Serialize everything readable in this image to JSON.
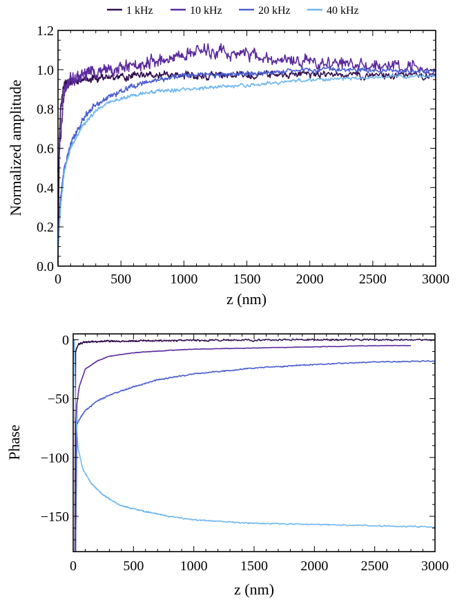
{
  "chart_data": [
    {
      "type": "line",
      "legend": [
        "1 kHz",
        "10 kHz",
        "20 kHz",
        "40 kHz"
      ],
      "legend_position": "top",
      "xlabel": "z (nm)",
      "ylabel": "Normalized amplitude",
      "xlim": [
        0,
        3000
      ],
      "ylim": [
        0,
        1.2
      ],
      "xticks": [
        "0",
        "500",
        "1000",
        "1500",
        "2000",
        "2500",
        "3000"
      ],
      "yticks": [
        "0.0",
        "0.2",
        "0.4",
        "0.6",
        "0.8",
        "1.0",
        "1.2"
      ],
      "series": [
        {
          "name": "1 kHz",
          "color": "#33104f",
          "x": [
            0,
            10,
            20,
            40,
            60,
            100,
            200,
            400,
            700,
            1000,
            1500,
            2000,
            2500,
            3000
          ],
          "y": [
            0.0,
            0.6,
            0.8,
            0.9,
            0.93,
            0.94,
            0.95,
            0.96,
            0.97,
            0.97,
            0.97,
            0.98,
            0.97,
            0.97
          ],
          "noise": 0.025
        },
        {
          "name": "10 kHz",
          "color": "#5b2a9e",
          "x": [
            0,
            50,
            100,
            200,
            400,
            600,
            800,
            1000,
            1200,
            1500,
            1800,
            2000,
            2300,
            2600,
            3000
          ],
          "y": [
            0.5,
            0.9,
            0.95,
            0.98,
            1.0,
            1.02,
            1.05,
            1.08,
            1.1,
            1.07,
            1.05,
            1.04,
            1.03,
            1.02,
            1.0
          ],
          "noise": 0.045
        },
        {
          "name": "20 kHz",
          "color": "#4a5fd0",
          "x": [
            0,
            20,
            50,
            100,
            200,
            300,
            400,
            600,
            800,
            1000,
            1500,
            2000,
            2500,
            3000
          ],
          "y": [
            0.1,
            0.35,
            0.5,
            0.62,
            0.75,
            0.82,
            0.86,
            0.92,
            0.95,
            0.97,
            0.98,
            1.0,
            1.0,
            0.99
          ],
          "noise": 0.018
        },
        {
          "name": "40 kHz",
          "color": "#6fb6ef",
          "x": [
            0,
            20,
            50,
            100,
            200,
            300,
            400,
            600,
            800,
            1000,
            1500,
            2000,
            2500,
            3000
          ],
          "y": [
            0.05,
            0.3,
            0.48,
            0.6,
            0.72,
            0.79,
            0.83,
            0.87,
            0.89,
            0.9,
            0.92,
            0.95,
            0.96,
            0.97
          ],
          "noise": 0.012
        }
      ]
    },
    {
      "type": "line",
      "xlabel": "z (nm)",
      "ylabel": "Phase",
      "xlim": [
        0,
        3000
      ],
      "ylim": [
        -180,
        5
      ],
      "xticks": [
        "0",
        "500",
        "1000",
        "1500",
        "2000",
        "2500",
        "3000"
      ],
      "yticks": [
        "0",
        "−50",
        "−100",
        "−150"
      ],
      "series": [
        {
          "name": "1 kHz",
          "color": "#33104f",
          "x": [
            15,
            20,
            40,
            100,
            200,
            500,
            1000,
            2000,
            3000
          ],
          "y": [
            -180,
            -10,
            -4,
            -2,
            -1.5,
            -1,
            -0.5,
            0,
            0
          ],
          "noise": 1.0
        },
        {
          "name": "10 kHz",
          "color": "#5b2a9e",
          "x": [
            20,
            30,
            50,
            100,
            200,
            300,
            500,
            800,
            1000,
            1500,
            2000,
            2500,
            2800
          ],
          "y": [
            -180,
            -55,
            -40,
            -25,
            -18,
            -14,
            -11,
            -9,
            -8,
            -7,
            -6,
            -5,
            -5
          ],
          "noise": 0.3
        },
        {
          "name": "20 kHz",
          "color": "#4a5fd0",
          "x": [
            20,
            30,
            50,
            100,
            200,
            300,
            500,
            700,
            1000,
            1500,
            2000,
            2500,
            3000
          ],
          "y": [
            -180,
            -72,
            -68,
            -60,
            -52,
            -47,
            -40,
            -34,
            -29,
            -24,
            -21,
            -19,
            -18
          ],
          "noise": 0.7
        },
        {
          "name": "40 kHz",
          "color": "#6fb6ef",
          "x": [
            10,
            20,
            40,
            80,
            150,
            250,
            400,
            600,
            800,
            1000,
            1500,
            2000,
            2500,
            3000
          ],
          "y": [
            0,
            -60,
            -92,
            -110,
            -122,
            -132,
            -141,
            -146,
            -150,
            -153,
            -156,
            -157,
            -158,
            -159
          ],
          "noise": 0.7
        }
      ]
    }
  ]
}
